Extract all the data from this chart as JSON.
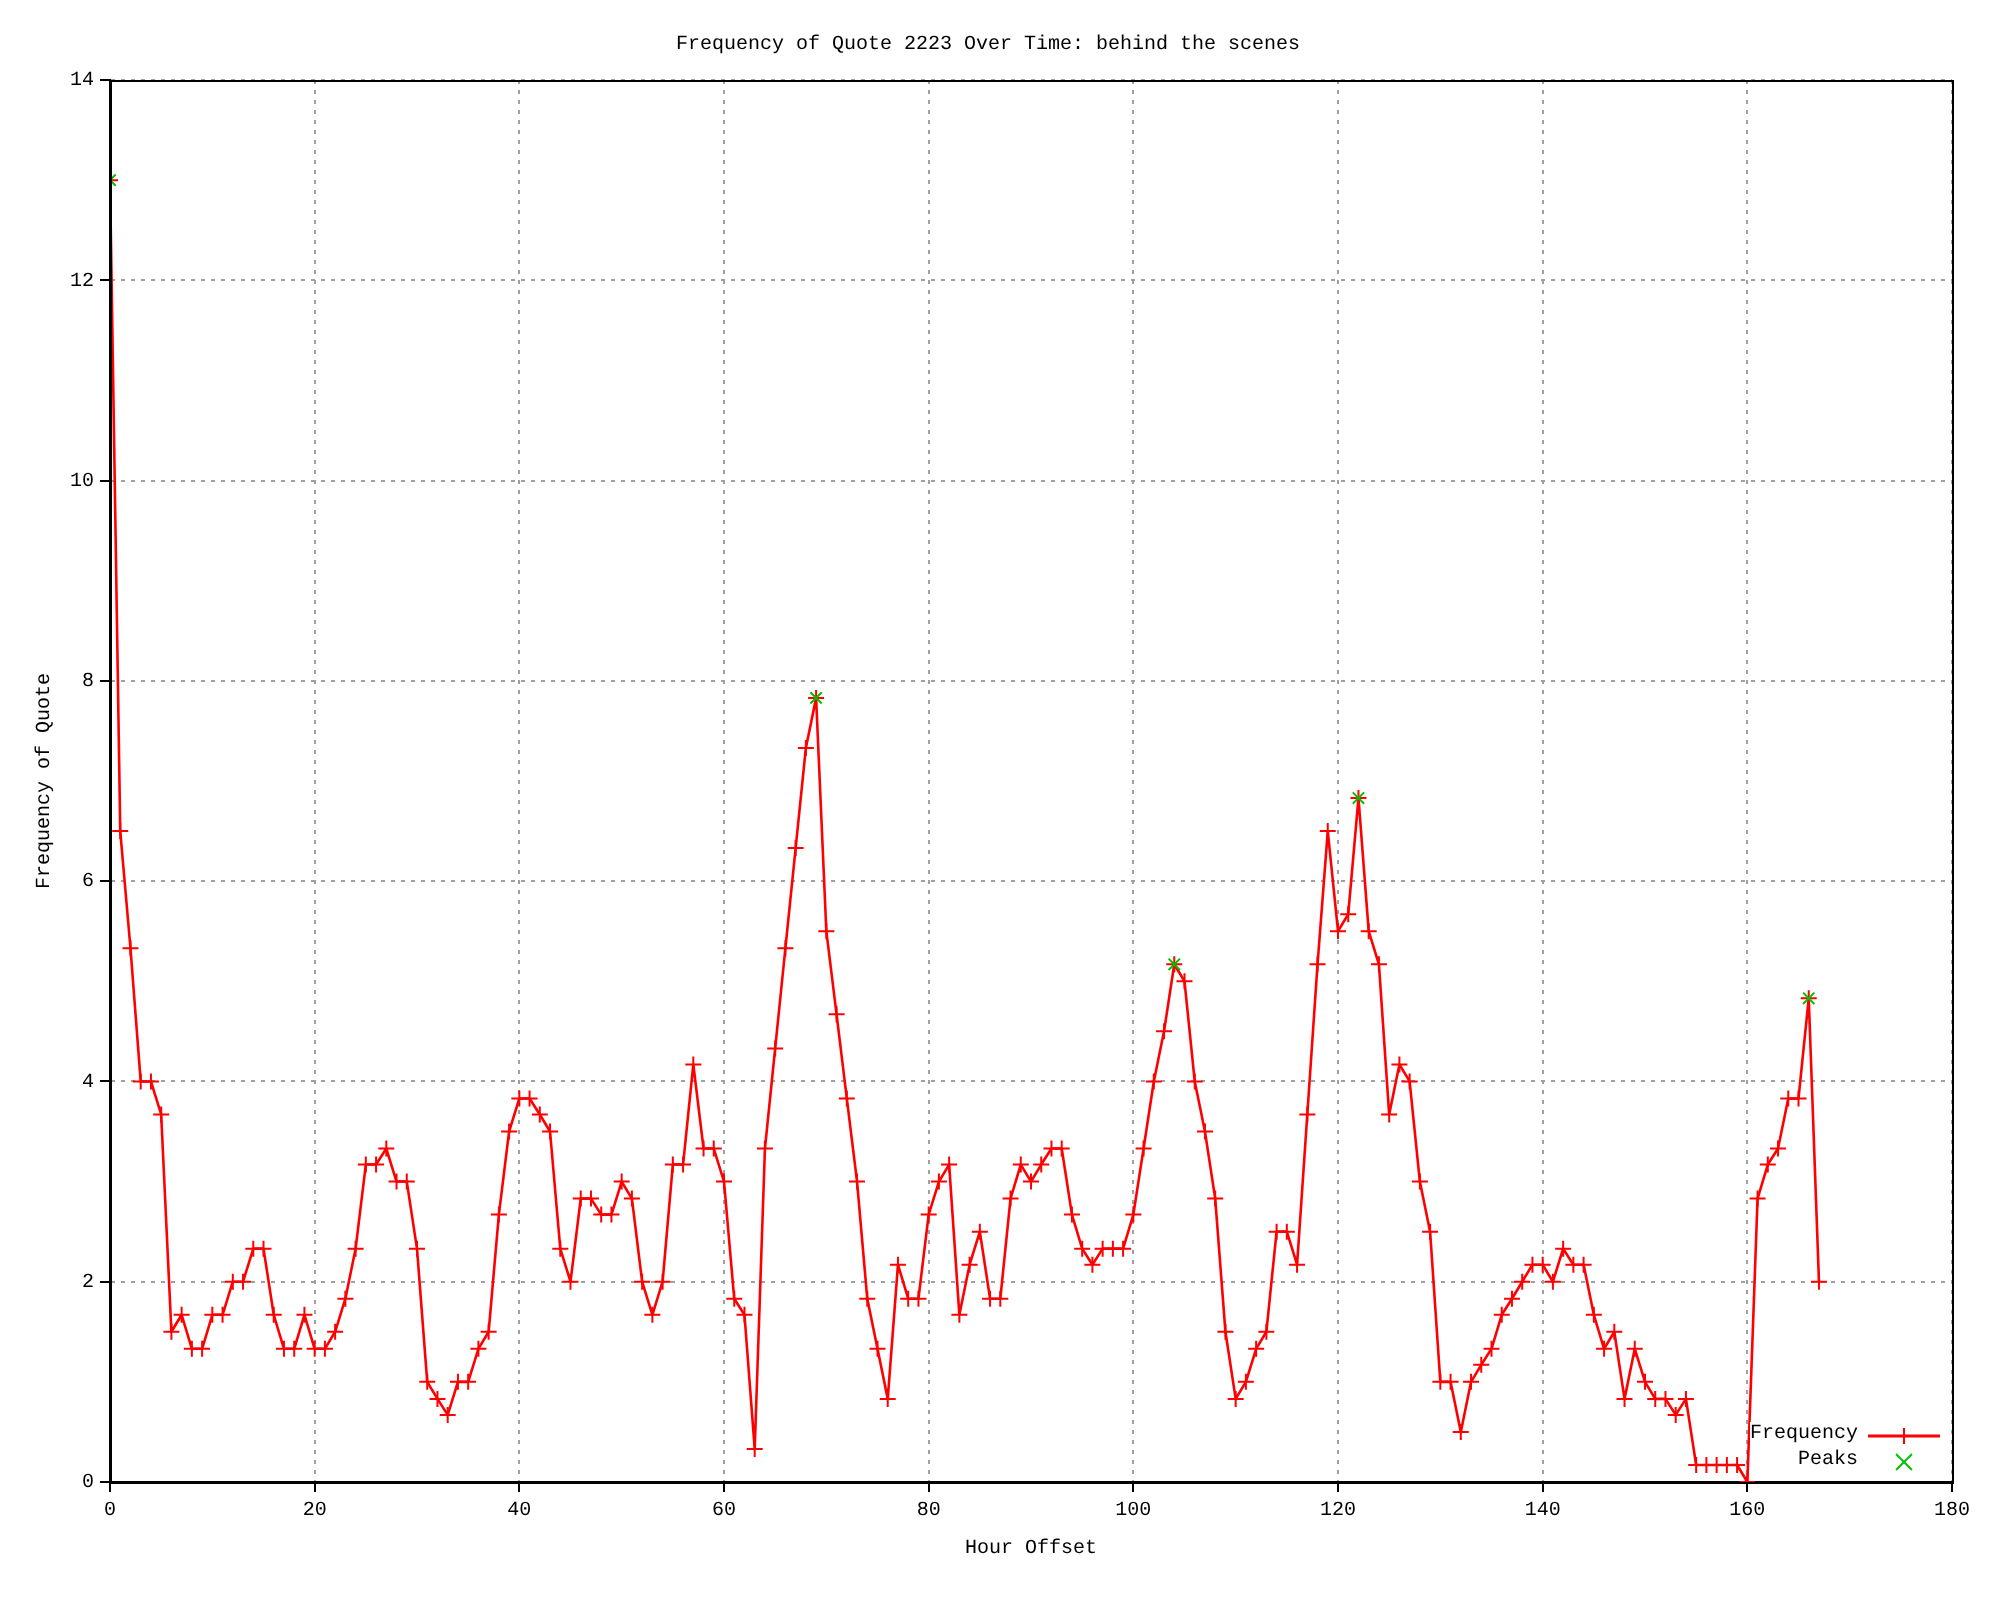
{
  "chart_data": {
    "type": "line",
    "title": "Frequency of Quote 2223 Over Time: behind the scenes",
    "xlabel": "Hour Offset",
    "ylabel": "Frequency of Quote",
    "x": [
      0,
      1,
      2,
      3,
      4,
      5,
      6,
      7,
      8,
      9,
      10,
      11,
      12,
      13,
      14,
      15,
      16,
      17,
      18,
      19,
      20,
      21,
      22,
      23,
      24,
      25,
      26,
      27,
      28,
      29,
      30,
      31,
      32,
      33,
      34,
      35,
      36,
      37,
      38,
      39,
      40,
      41,
      42,
      43,
      44,
      45,
      46,
      47,
      48,
      49,
      50,
      51,
      52,
      53,
      54,
      55,
      56,
      57,
      58,
      59,
      60,
      61,
      62,
      63,
      64,
      65,
      66,
      67,
      68,
      69,
      70,
      71,
      72,
      73,
      74,
      75,
      76,
      77,
      78,
      79,
      80,
      81,
      82,
      83,
      84,
      85,
      86,
      87,
      88,
      89,
      90,
      91,
      92,
      93,
      94,
      95,
      96,
      97,
      98,
      99,
      100,
      101,
      102,
      103,
      104,
      105,
      106,
      107,
      108,
      109,
      110,
      111,
      112,
      113,
      114,
      115,
      116,
      117,
      118,
      119,
      120,
      121,
      122,
      123,
      124,
      125,
      126,
      127,
      128,
      129,
      130,
      131,
      132,
      133,
      134,
      135,
      136,
      137,
      138,
      139,
      140,
      141,
      142,
      143,
      144,
      145,
      146,
      147,
      148,
      149,
      150,
      151,
      152,
      153,
      154,
      155,
      156,
      157,
      158,
      159,
      160,
      161,
      162,
      163,
      164,
      165,
      166,
      167
    ],
    "xlim": [
      0,
      180
    ],
    "xticks": [
      0,
      20,
      40,
      60,
      80,
      100,
      120,
      140,
      160,
      180
    ],
    "ylim": [
      0,
      14
    ],
    "yticks": [
      0,
      2,
      4,
      6,
      8,
      10,
      12,
      14
    ],
    "grid": true,
    "legend": "bottom right",
    "series": [
      {
        "name": "Frequency",
        "color": "#ff0000",
        "marker": "cross",
        "values": [
          13,
          6.5,
          5.33,
          4,
          4,
          3.67,
          1.5,
          1.67,
          1.33,
          1.33,
          1.67,
          1.67,
          2,
          2,
          2.33,
          2.33,
          1.67,
          1.33,
          1.33,
          1.67,
          1.33,
          1.33,
          1.5,
          1.83,
          2.33,
          3.17,
          3.17,
          3.33,
          3,
          3,
          2.33,
          1,
          0.83,
          0.67,
          1,
          1,
          1.33,
          1.5,
          2.67,
          3.5,
          3.83,
          3.83,
          3.67,
          3.5,
          2.33,
          2,
          2.83,
          2.83,
          2.67,
          2.67,
          3,
          2.83,
          2,
          1.67,
          2,
          3.17,
          3.17,
          4.17,
          3.33,
          3.33,
          3,
          1.83,
          1.67,
          0.33,
          3.33,
          4.33,
          5.33,
          6.33,
          7.33,
          7.83,
          5.5,
          4.67,
          3.83,
          3,
          1.83,
          1.33,
          0.83,
          2.17,
          1.83,
          1.83,
          2.67,
          3,
          3.17,
          1.67,
          2.17,
          2.5,
          1.83,
          1.83,
          2.83,
          3.17,
          3,
          3.17,
          3.33,
          3.33,
          2.67,
          2.33,
          2.17,
          2.33,
          2.33,
          2.33,
          2.67,
          3.33,
          4,
          4.5,
          5.17,
          5,
          4,
          3.5,
          2.83,
          1.5,
          0.83,
          1,
          1.33,
          1.5,
          2.5,
          2.5,
          2.17,
          3.67,
          5.17,
          6.5,
          5.5,
          5.67,
          6.83,
          5.5,
          5.17,
          3.67,
          4.17,
          4,
          3,
          2.5,
          1,
          1,
          0.5,
          1,
          1.17,
          1.33,
          1.67,
          1.83,
          2,
          2.17,
          2.17,
          2,
          2.33,
          2.17,
          2.17,
          1.67,
          1.33,
          1.5,
          0.83,
          1.33,
          1,
          0.83,
          0.83,
          0.67,
          0.83,
          0.17,
          0.17,
          0.17,
          0.17,
          0.17,
          0,
          2.83,
          3.17,
          3.33,
          3.83,
          3.83,
          4.83,
          2
        ]
      },
      {
        "name": "Peaks",
        "type": "scatter",
        "color": "#00c000",
        "marker": "cross",
        "x": [
          0,
          69,
          104,
          122,
          166
        ],
        "values": [
          13,
          7.83,
          5.17,
          6.83,
          4.83
        ]
      }
    ]
  }
}
